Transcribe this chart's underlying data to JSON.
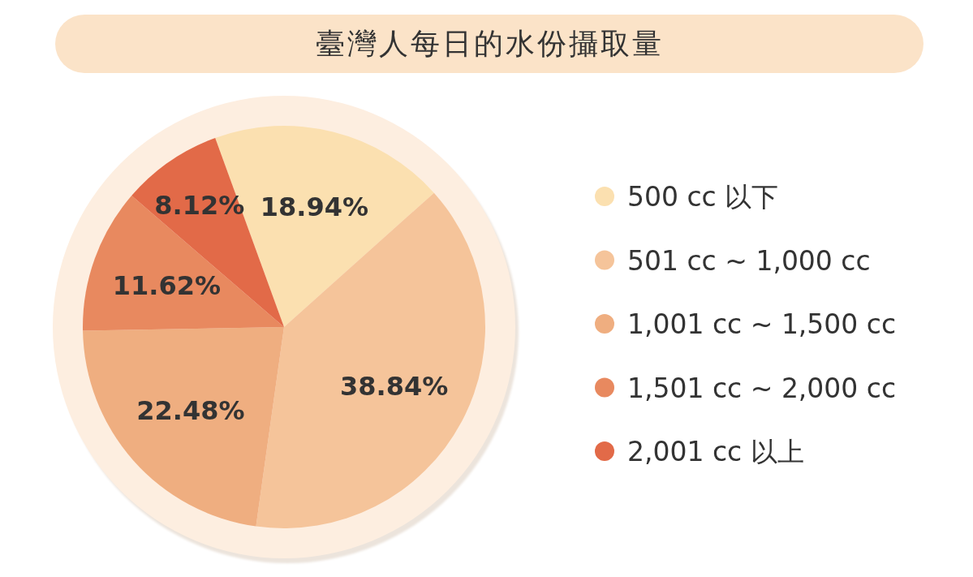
{
  "chart_data": {
    "type": "pie",
    "title": "臺灣人每日的水份攝取量",
    "categories": [
      "500 cc 以下",
      "501 cc ~ 1,000 cc",
      "1,001 cc ~ 1,500 cc",
      "1,501 cc ~ 2,000 cc",
      "2,001 cc 以上"
    ],
    "values": [
      18.94,
      38.84,
      22.48,
      11.62,
      8.12
    ],
    "value_labels": [
      "18.94%",
      "38.84%",
      "22.48%",
      "11.62%",
      "8.12%"
    ],
    "colors": [
      "#fbe0b0",
      "#f5c49a",
      "#efae80",
      "#e8895f",
      "#e26a48"
    ],
    "legend": "right"
  }
}
